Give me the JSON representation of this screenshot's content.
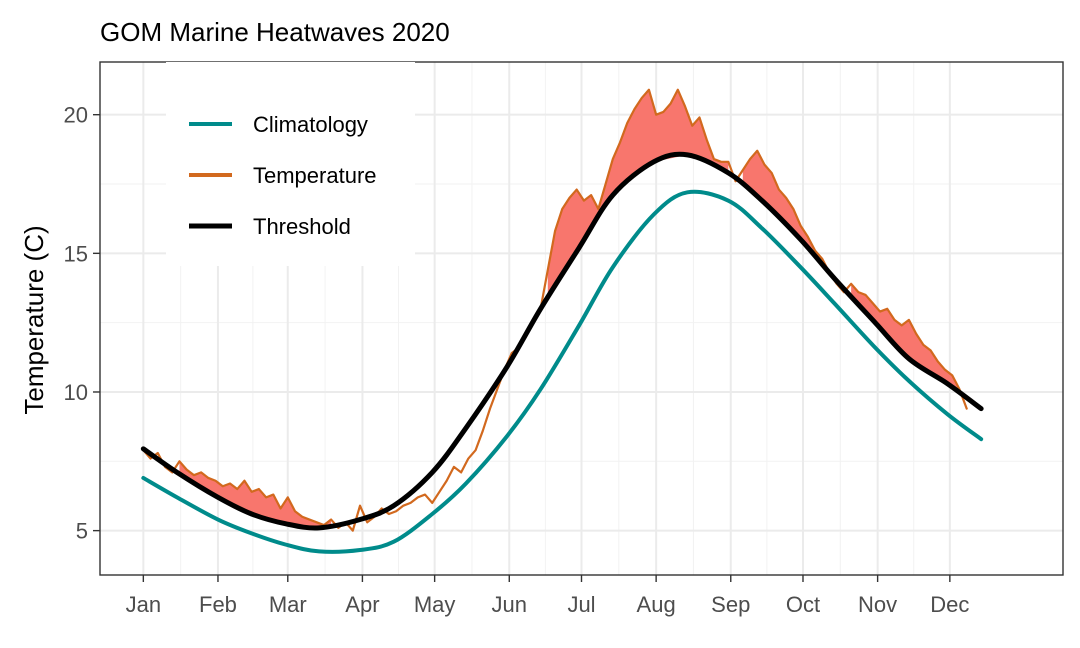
{
  "chart_data": {
    "type": "line",
    "title": "GOM Marine Heatwaves 2020",
    "xlabel": "",
    "ylabel": "Temperature (C)",
    "x_ticks": [
      "Jan",
      "Feb",
      "Mar",
      "Apr",
      "May",
      "Jun",
      "Jul",
      "Aug",
      "Sep",
      "Oct",
      "Nov",
      "Dec"
    ],
    "y_ticks": [
      5,
      10,
      15,
      20
    ],
    "xlim": [
      -17,
      383
    ],
    "ylim": [
      3.4,
      21.9
    ],
    "grid": true,
    "legend_position": "top-left",
    "heatwave_fill_color": "#F8766D",
    "series": [
      {
        "name": "Climatology",
        "color": "#008B8B",
        "x": [
          1,
          15,
          32,
          46,
          60,
          74,
          91,
          105,
          121,
          135,
          152,
          166,
          182,
          196,
          213,
          227,
          244,
          258,
          274,
          288,
          305,
          319,
          335,
          349
        ],
        "values": [
          6.9,
          6.2,
          5.4,
          4.9,
          4.5,
          4.25,
          4.3,
          4.6,
          5.6,
          6.7,
          8.4,
          10.1,
          12.4,
          14.5,
          16.4,
          17.2,
          16.9,
          15.9,
          14.5,
          13.2,
          11.6,
          10.4,
          9.2,
          8.3
        ]
      },
      {
        "name": "Temperature",
        "color": "#D2691E",
        "x": [
          1,
          4,
          7,
          10,
          13,
          16,
          19,
          22,
          25,
          28,
          31,
          34,
          37,
          40,
          43,
          46,
          49,
          52,
          55,
          58,
          61,
          64,
          67,
          70,
          73,
          76,
          79,
          82,
          85,
          88,
          91,
          94,
          97,
          100,
          103,
          106,
          109,
          112,
          115,
          118,
          121,
          124,
          127,
          130,
          133,
          136,
          139,
          142,
          145,
          148,
          151,
          154,
          157,
          160,
          163,
          166,
          169,
          172,
          175,
          178,
          181,
          184,
          187,
          190,
          193,
          196,
          199,
          202,
          205,
          208,
          211,
          214,
          217,
          220,
          223,
          226,
          229,
          232,
          235,
          238,
          241,
          244,
          247,
          250,
          253,
          256,
          259,
          262,
          265,
          268,
          271,
          274,
          277,
          280,
          283,
          286,
          289,
          292,
          295,
          298,
          301,
          304,
          307,
          310,
          313,
          316,
          319,
          322,
          325,
          328,
          331,
          334,
          337,
          340,
          343
        ],
        "values": [
          7.9,
          7.6,
          7.8,
          7.3,
          7.1,
          7.5,
          7.2,
          7.0,
          7.1,
          6.9,
          6.8,
          6.6,
          6.7,
          6.5,
          6.8,
          6.4,
          6.5,
          6.2,
          6.3,
          5.8,
          6.2,
          5.7,
          5.5,
          5.4,
          5.3,
          5.2,
          5.4,
          5.1,
          5.3,
          5.0,
          5.9,
          5.3,
          5.5,
          5.8,
          5.6,
          5.7,
          5.9,
          6.0,
          6.2,
          6.3,
          6.0,
          6.4,
          6.8,
          7.3,
          7.1,
          7.6,
          7.9,
          8.6,
          9.4,
          10.1,
          10.8,
          11.4,
          11.6,
          12.0,
          12.6,
          13.0,
          14.4,
          15.8,
          16.6,
          17.0,
          17.3,
          16.9,
          17.1,
          16.6,
          17.5,
          18.4,
          19.0,
          19.7,
          20.2,
          20.6,
          20.9,
          20.0,
          20.1,
          20.4,
          20.9,
          20.3,
          19.6,
          19.9,
          19.1,
          18.4,
          18.3,
          18.3,
          17.6,
          18.0,
          18.4,
          18.7,
          18.2,
          17.9,
          17.3,
          17.0,
          16.6,
          16.0,
          15.6,
          15.1,
          14.8,
          14.3,
          13.9,
          13.6,
          13.9,
          13.6,
          13.5,
          13.2,
          12.9,
          13.0,
          12.6,
          12.4,
          12.6,
          12.1,
          11.7,
          11.5,
          11.1,
          10.8,
          10.6,
          10.1,
          9.4
        ]
      },
      {
        "name": "Threshold",
        "color": "#000000",
        "x": [
          1,
          15,
          32,
          46,
          60,
          74,
          91,
          105,
          121,
          135,
          152,
          166,
          182,
          196,
          213,
          227,
          244,
          258,
          274,
          288,
          305,
          319,
          335,
          349
        ],
        "values": [
          7.95,
          7.1,
          6.2,
          5.6,
          5.25,
          5.1,
          5.4,
          5.9,
          7.1,
          8.7,
          10.9,
          13.0,
          15.2,
          17.1,
          18.3,
          18.55,
          17.9,
          16.9,
          15.5,
          14.1,
          12.5,
          11.2,
          10.3,
          9.4
        ]
      }
    ]
  }
}
